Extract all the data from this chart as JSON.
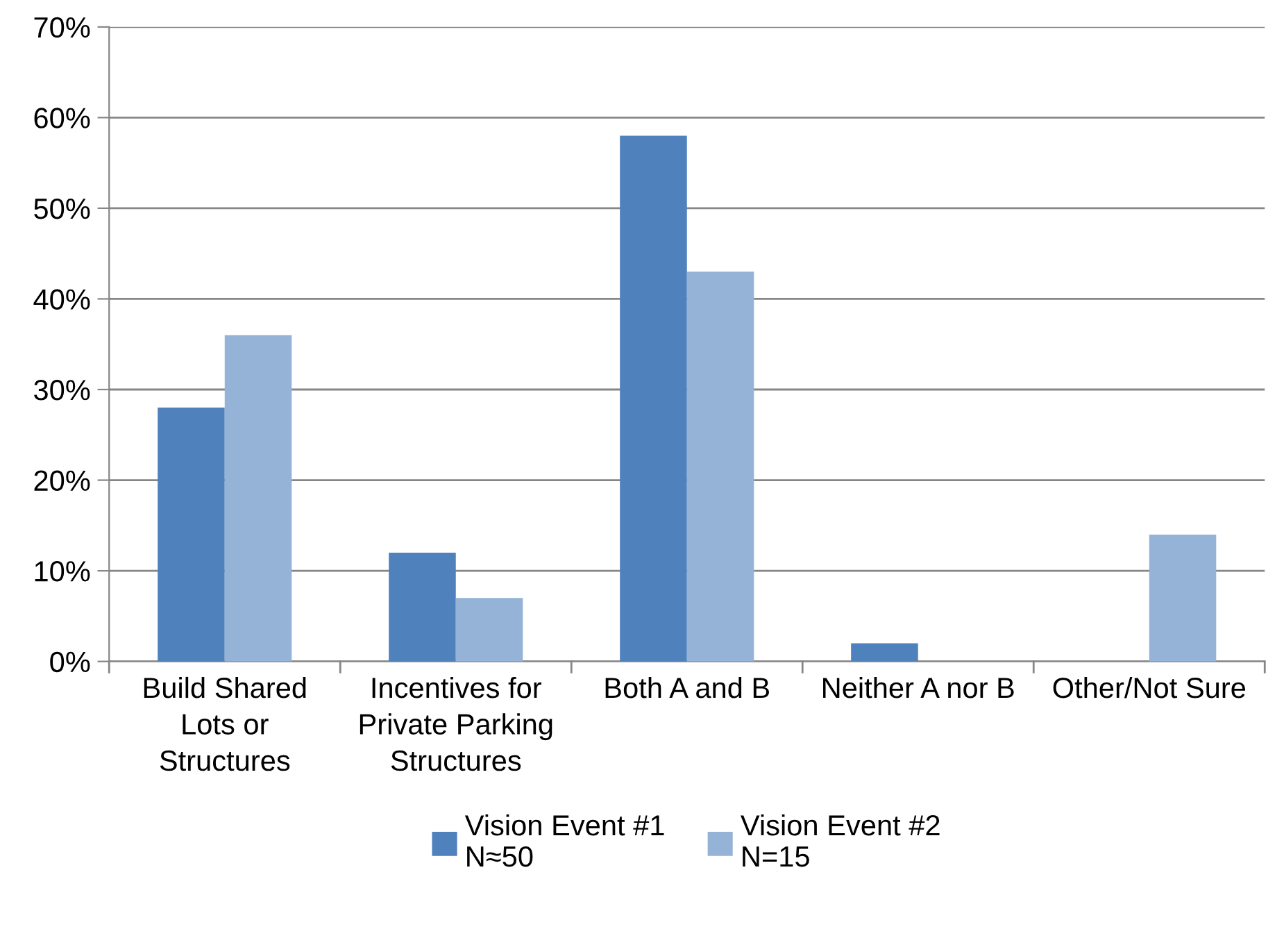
{
  "chart_data": {
    "type": "bar",
    "categories": [
      "Build Shared\nLots or\nStructures",
      "Incentives for\nPrivate Parking\nStructures",
      "Both A and B",
      "Neither A nor B",
      "Other/Not Sure"
    ],
    "series": [
      {
        "name": "Vision Event #1\nN≈50",
        "color": "#4f81bd",
        "values": [
          28,
          12,
          58,
          2,
          0
        ]
      },
      {
        "name": "Vision Event #2\nN=15",
        "color": "#95b3d7",
        "values": [
          36,
          7,
          43,
          0,
          14
        ]
      }
    ],
    "ylim": [
      0,
      70
    ],
    "yticks": [
      {
        "value": 0,
        "label": "0%"
      },
      {
        "value": 10,
        "label": "10%"
      },
      {
        "value": 20,
        "label": "20%"
      },
      {
        "value": 30,
        "label": "30%"
      },
      {
        "value": 40,
        "label": "40%"
      },
      {
        "value": 50,
        "label": "50%"
      },
      {
        "value": 60,
        "label": "60%"
      },
      {
        "value": 70,
        "label": "70%"
      }
    ],
    "grid": "y",
    "legend": "bottom"
  }
}
